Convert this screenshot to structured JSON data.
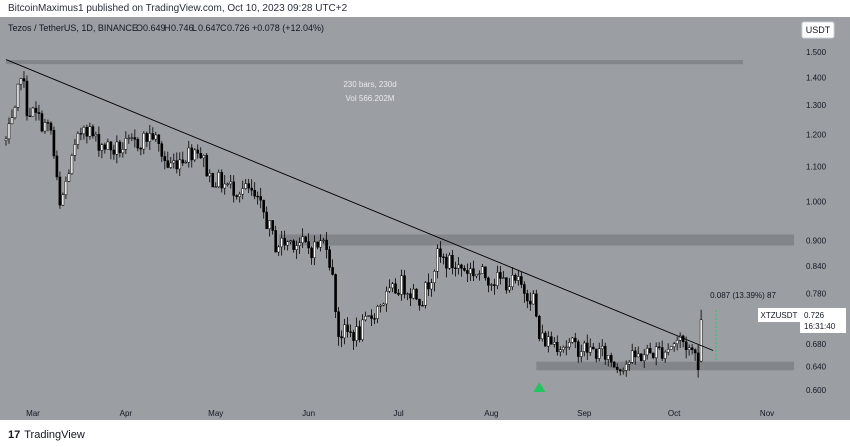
{
  "publisher_line": "BitcoinMaximus1 published on TradingView.com, Oct 10, 2023 09:28 UTC+2",
  "symbol_info": {
    "pair": "Tezos / TetherUS, 1D, BINANCE",
    "o_label": "O",
    "o": "0.649",
    "h_label": "H",
    "h": "0.746",
    "l_label": "L",
    "l": "0.647",
    "c_label": "C",
    "c": "0.726",
    "change": "+0.078 (+12.04%)"
  },
  "currency_badge": "USDT",
  "range_annotation": {
    "bars": "230 bars, 230d",
    "vol": "Vol 566.202M"
  },
  "measure_annotation": "0.087 (13.39%) 87",
  "price_tag": {
    "symbol": "XTZUSDT",
    "price": "0.726",
    "countdown": "16:31:40"
  },
  "footer_brand": "TradingView",
  "footer_mark": "17",
  "colors": {
    "background": "#9b9ea3",
    "candle_up": "#ffffff",
    "candle_down": "#000000",
    "zone": "#7e8186",
    "trendline": "#000000",
    "arrow": "#22c55e",
    "axis_text": "#131722"
  },
  "chart_data": {
    "type": "candlestick",
    "y_scale": "log",
    "ylim": [
      0.57,
      1.65
    ],
    "y_ticks": [
      1.5,
      1.4,
      1.3,
      1.2,
      1.1,
      1.0,
      0.9,
      0.84,
      0.78,
      0.68,
      0.64,
      0.6
    ],
    "y_tick_labels": [
      "1.500",
      "1.400",
      "1.300",
      "1.200",
      "1.100",
      "1.000",
      "0.900",
      "0.840",
      "0.780",
      "0.680",
      "0.640",
      "0.600"
    ],
    "x_range": [
      "2023-02-18",
      "2023-11-12"
    ],
    "x_ticks": [
      {
        "date": "2023-03-01",
        "label": "Mar"
      },
      {
        "date": "2023-04-01",
        "label": "Apr"
      },
      {
        "date": "2023-05-01",
        "label": "May"
      },
      {
        "date": "2023-06-01",
        "label": "Jun"
      },
      {
        "date": "2023-07-01",
        "label": "Jul"
      },
      {
        "date": "2023-08-01",
        "label": "Aug"
      },
      {
        "date": "2023-09-01",
        "label": "Sep"
      },
      {
        "date": "2023-10-01",
        "label": "Oct"
      },
      {
        "date": "2023-11-01",
        "label": "Nov"
      }
    ],
    "price_path": [
      [
        "2023-02-20",
        1.18
      ],
      [
        "2023-02-23",
        1.26
      ],
      [
        "2023-02-25",
        1.43
      ],
      [
        "2023-02-27",
        1.29
      ],
      [
        "2023-03-03",
        1.25
      ],
      [
        "2023-03-07",
        1.21
      ],
      [
        "2023-03-10",
        0.98
      ],
      [
        "2023-03-13",
        1.09
      ],
      [
        "2023-03-18",
        1.24
      ],
      [
        "2023-03-22",
        1.18
      ],
      [
        "2023-03-28",
        1.15
      ],
      [
        "2023-04-04",
        1.17
      ],
      [
        "2023-04-10",
        1.2
      ],
      [
        "2023-04-15",
        1.1
      ],
      [
        "2023-04-20",
        1.13
      ],
      [
        "2023-04-25",
        1.16
      ],
      [
        "2023-04-29",
        1.07
      ],
      [
        "2023-05-06",
        1.04
      ],
      [
        "2023-05-12",
        1.03
      ],
      [
        "2023-05-17",
        0.97
      ],
      [
        "2023-05-21",
        0.89
      ],
      [
        "2023-05-27",
        0.9
      ],
      [
        "2023-06-02",
        0.88
      ],
      [
        "2023-06-07",
        0.9
      ],
      [
        "2023-06-09",
        0.81
      ],
      [
        "2023-06-11",
        0.7
      ],
      [
        "2023-06-18",
        0.7
      ],
      [
        "2023-06-25",
        0.76
      ],
      [
        "2023-07-02",
        0.8
      ],
      [
        "2023-07-09",
        0.77
      ],
      [
        "2023-07-14",
        0.86
      ],
      [
        "2023-07-20",
        0.84
      ],
      [
        "2023-07-25",
        0.83
      ],
      [
        "2023-08-02",
        0.81
      ],
      [
        "2023-08-10",
        0.8
      ],
      [
        "2023-08-15",
        0.77
      ],
      [
        "2023-08-17",
        0.69
      ],
      [
        "2023-08-25",
        0.68
      ],
      [
        "2023-09-02",
        0.67
      ],
      [
        "2023-09-08",
        0.66
      ],
      [
        "2023-09-12",
        0.64
      ],
      [
        "2023-09-20",
        0.66
      ],
      [
        "2023-09-28",
        0.67
      ],
      [
        "2023-10-03",
        0.69
      ],
      [
        "2023-10-08",
        0.66
      ],
      [
        "2023-10-09",
        0.649
      ]
    ],
    "last_candle": {
      "date": "2023-10-10",
      "open": 0.649,
      "high": 0.746,
      "low": 0.647,
      "close": 0.726
    },
    "trendline": [
      [
        "2023-02-20",
        1.47
      ],
      [
        "2023-10-14",
        0.668
      ]
    ],
    "resistance_zone": {
      "from": "2023-05-22",
      "to": "2023-11-10",
      "low": 0.888,
      "high": 0.915
    },
    "support_zone": {
      "from": "2023-08-16",
      "to": "2023-11-10",
      "low": 0.633,
      "high": 0.648
    },
    "top_zone": {
      "from": "2023-02-20",
      "to": "2023-10-24",
      "low": 1.452,
      "high": 1.468
    },
    "arrow_date": "2023-08-17",
    "arrow_price": 0.605
  }
}
